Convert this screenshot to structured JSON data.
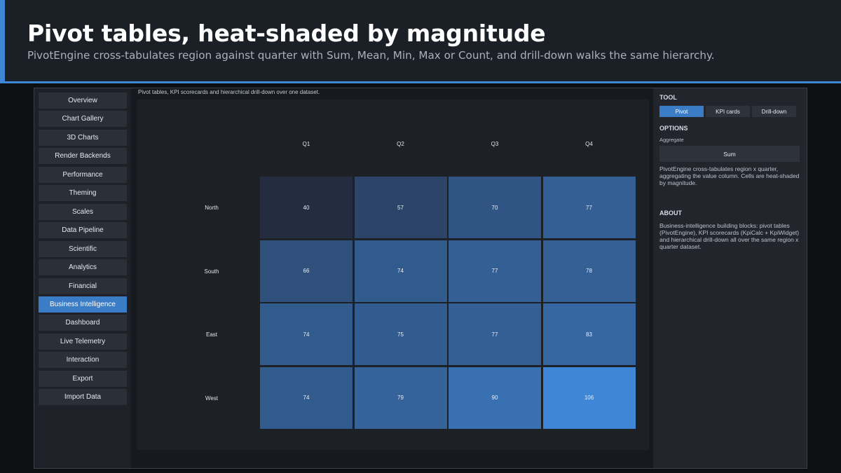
{
  "banner": {
    "title": "Pivot tables, heat-shaded by magnitude",
    "subtitle": "PivotEngine cross-tabulates region against quarter with Sum, Mean, Min, Max or Count, and drill-down walks the same hierarchy."
  },
  "sidebar": {
    "items": [
      {
        "label": "Overview",
        "active": false
      },
      {
        "label": "Chart Gallery",
        "active": false
      },
      {
        "label": "3D Charts",
        "active": false
      },
      {
        "label": "Render Backends",
        "active": false
      },
      {
        "label": "Performance",
        "active": false
      },
      {
        "label": "Theming",
        "active": false
      },
      {
        "label": "Scales",
        "active": false
      },
      {
        "label": "Data Pipeline",
        "active": false
      },
      {
        "label": "Scientific",
        "active": false
      },
      {
        "label": "Analytics",
        "active": false
      },
      {
        "label": "Financial",
        "active": false
      },
      {
        "label": "Business Intelligence",
        "active": true
      },
      {
        "label": "Dashboard",
        "active": false
      },
      {
        "label": "Live Telemetry",
        "active": false
      },
      {
        "label": "Interaction",
        "active": false
      },
      {
        "label": "Export",
        "active": false
      },
      {
        "label": "Import Data",
        "active": false
      }
    ]
  },
  "main": {
    "caption": "Pivot tables, KPI scorecards and hierarchical drill-down over one dataset."
  },
  "pivot": {
    "columns": [
      "Q1",
      "Q2",
      "Q3",
      "Q4"
    ],
    "rows": [
      "North",
      "South",
      "East",
      "West"
    ],
    "values": [
      [
        40,
        57,
        70,
        77
      ],
      [
        66,
        74,
        77,
        78
      ],
      [
        74,
        75,
        77,
        83
      ],
      [
        74,
        79,
        90,
        106
      ]
    ],
    "colors": {
      "low": "#242d40",
      "high": "#3f86d6"
    }
  },
  "right_panel": {
    "tool_title": "TOOL",
    "tools": [
      {
        "label": "Pivot",
        "active": true
      },
      {
        "label": "KPI cards",
        "active": false
      },
      {
        "label": "Drill-down",
        "active": false
      }
    ],
    "options_title": "OPTIONS",
    "aggregate_label": "Aggregate",
    "aggregate_value": "Sum",
    "description": "PivotEngine cross-tabulates region x quarter, aggregating the value column. Cells are heat-shaded by magnitude.",
    "about_title": "ABOUT",
    "about_text": "Business-intelligence building blocks: pivot tables (PivotEngine), KPI scorecards (KpiCalc + KpiWidget) and hierarchical drill-down  all over the same region x quarter dataset."
  }
}
